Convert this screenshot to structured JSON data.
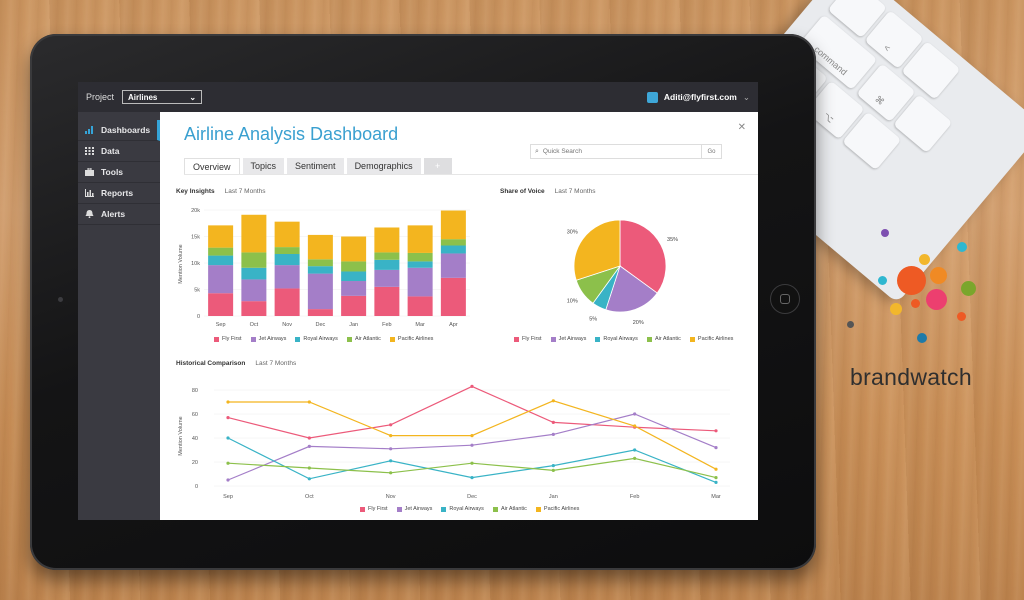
{
  "topbar": {
    "project_label": "Project",
    "project_value": "Airlines",
    "user_email": "Aditi@flyfirst.com"
  },
  "sidebar": {
    "items": [
      {
        "label": "Dashboards",
        "icon": "bar-chart-icon",
        "active": true
      },
      {
        "label": "Data",
        "icon": "grid-icon"
      },
      {
        "label": "Tools",
        "icon": "briefcase-icon"
      },
      {
        "label": "Reports",
        "icon": "chart-icon"
      },
      {
        "label": "Alerts",
        "icon": "bell-icon"
      }
    ]
  },
  "main": {
    "title": "Airline Analysis Dashboard",
    "search": {
      "placeholder": "Quick Search",
      "go_label": "Go"
    },
    "tabs": [
      "Overview",
      "Topics",
      "Sentiment",
      "Demographics",
      "+"
    ]
  },
  "sections": {
    "key_insights": {
      "title": "Key Insights",
      "period": "Last 7 Months"
    },
    "share_of_voice": {
      "title": "Share of Voice",
      "period": "Last 7 Months"
    },
    "historical": {
      "title": "Historical Comparison",
      "period": "Last 7 Months"
    }
  },
  "colors": {
    "Fly First": "#ec5a7a",
    "Jet Airways": "#a47ec8",
    "Royal Airways": "#39b3c6",
    "Air Atlantic": "#8cc04b",
    "Pacific Airlines": "#f3b51f"
  },
  "chart_data": [
    {
      "type": "bar",
      "stacked": true,
      "categories": [
        "Sep",
        "Oct",
        "Nov",
        "Dec",
        "Jan",
        "Feb",
        "Mar",
        "Apr"
      ],
      "ylabel": "Mention Volume",
      "yticks": [
        "0",
        "5k",
        "10k",
        "15k",
        "20k"
      ],
      "ylim": [
        0,
        20000
      ],
      "series": [
        {
          "name": "Fly First",
          "values": [
            4300,
            2800,
            5200,
            1300,
            3800,
            5500,
            3700,
            7200
          ]
        },
        {
          "name": "Jet Airways",
          "values": [
            5300,
            4100,
            4400,
            6700,
            2800,
            3200,
            5400,
            4600
          ]
        },
        {
          "name": "Royal Airways",
          "values": [
            1800,
            2200,
            2100,
            1400,
            1800,
            1900,
            1200,
            1500
          ]
        },
        {
          "name": "Air Atlantic",
          "values": [
            1500,
            2900,
            1300,
            1300,
            1900,
            1400,
            1600,
            1200
          ]
        },
        {
          "name": "Pacific Airlines",
          "values": [
            4200,
            7100,
            4800,
            4600,
            4700,
            4700,
            5200,
            5400
          ]
        }
      ],
      "legend": "bottom"
    },
    {
      "type": "pie",
      "slices": [
        {
          "name": "Fly First",
          "value": 35,
          "label": "35%"
        },
        {
          "name": "Jet Airways",
          "value": 20,
          "label": "20%"
        },
        {
          "name": "Royal Airways",
          "value": 5,
          "label": "5%"
        },
        {
          "name": "Air Atlantic",
          "value": 10,
          "label": "10%"
        },
        {
          "name": "Pacific Airlines",
          "value": 30,
          "label": "30%"
        }
      ],
      "legend": "bottom"
    },
    {
      "type": "line",
      "categories": [
        "Sep",
        "Oct",
        "Nov",
        "Dec",
        "Jan",
        "Feb",
        "Mar"
      ],
      "ylabel": "Mention Volume",
      "yticks": [
        "0",
        "20",
        "40",
        "60",
        "80"
      ],
      "ylim": [
        0,
        85
      ],
      "series": [
        {
          "name": "Fly First",
          "values": [
            57,
            40,
            51,
            83,
            53,
            49,
            46
          ]
        },
        {
          "name": "Jet Airways",
          "values": [
            5,
            33,
            31,
            34,
            43,
            60,
            32
          ]
        },
        {
          "name": "Royal Airways",
          "values": [
            40,
            6,
            21,
            7,
            17,
            30,
            3
          ]
        },
        {
          "name": "Air Atlantic",
          "values": [
            19,
            15,
            11,
            19,
            13,
            23,
            7
          ]
        },
        {
          "name": "Pacific Airlines",
          "values": [
            70,
            70,
            42,
            42,
            71,
            50,
            14
          ]
        }
      ],
      "legend": "bottom"
    }
  ],
  "brand": {
    "wordmark": "brandwatch"
  },
  "keyboard": {
    "keys": [
      "command",
      "option",
      "⌘",
      "<",
      "⌥"
    ]
  }
}
